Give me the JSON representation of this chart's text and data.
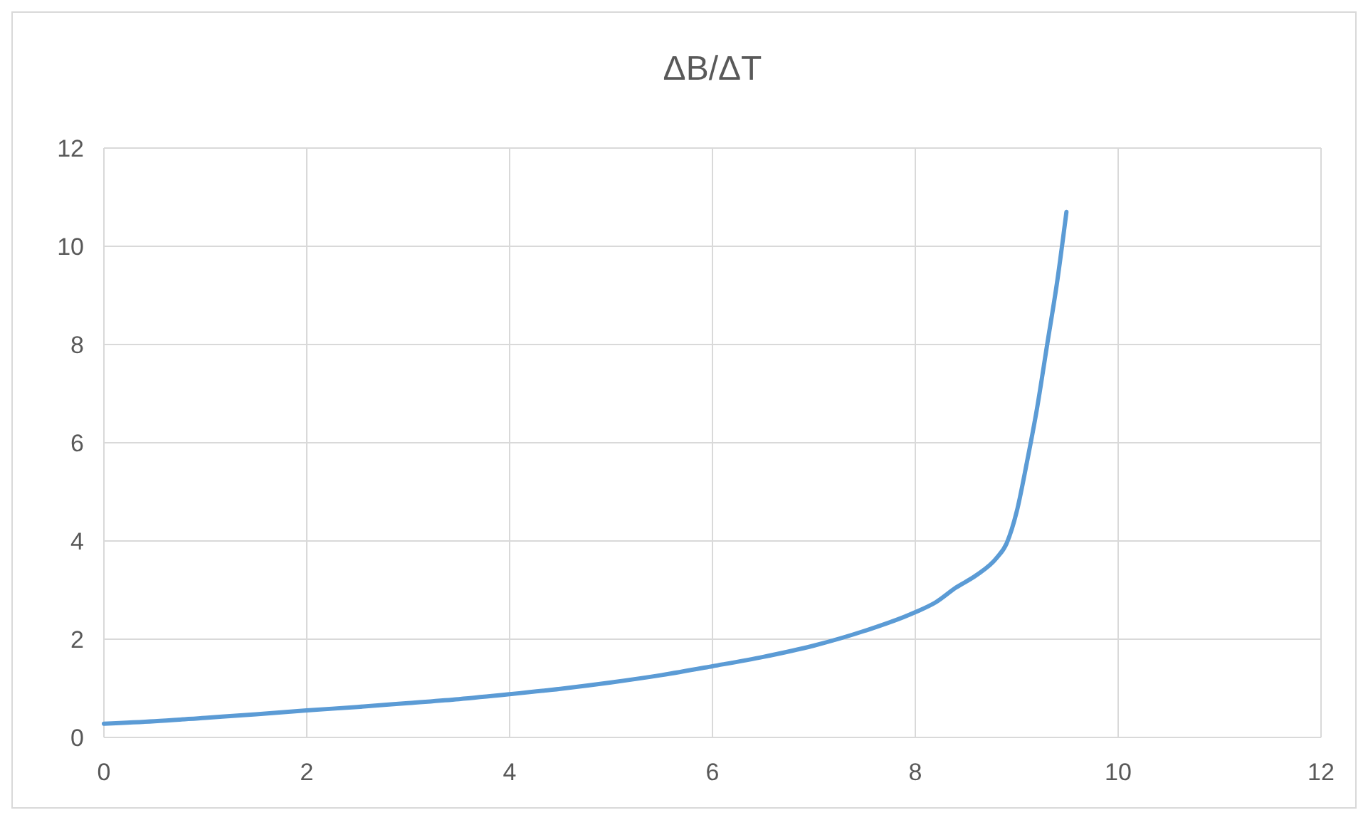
{
  "chart_data": {
    "type": "line",
    "title": "ΔB/ΔT",
    "x": [
      0,
      0.5,
      1,
      1.5,
      2,
      2.5,
      3,
      3.5,
      4,
      4.5,
      5,
      5.5,
      6,
      6.5,
      7,
      7.5,
      8,
      8.2,
      8.4,
      8.6,
      8.8,
      8.9,
      9,
      9.1,
      9.2,
      9.3,
      9.4,
      9.49
    ],
    "series": [
      {
        "color": "#5b9bd5",
        "values": [
          0.28,
          0.33,
          0.4,
          0.47,
          0.55,
          0.62,
          0.7,
          0.78,
          0.88,
          0.99,
          1.12,
          1.27,
          1.45,
          1.64,
          1.87,
          2.17,
          2.55,
          2.75,
          3.05,
          3.3,
          3.65,
          3.95,
          4.6,
          5.6,
          6.7,
          8.0,
          9.3,
          10.7
        ]
      }
    ],
    "xlim": [
      0,
      12
    ],
    "xticks": [
      0,
      2,
      4,
      6,
      8,
      10,
      12
    ],
    "ylim": [
      0,
      12
    ],
    "yticks": [
      0,
      2,
      4,
      6,
      8,
      10,
      12
    ],
    "grid": true,
    "marker": "none",
    "line_style": "solid"
  }
}
